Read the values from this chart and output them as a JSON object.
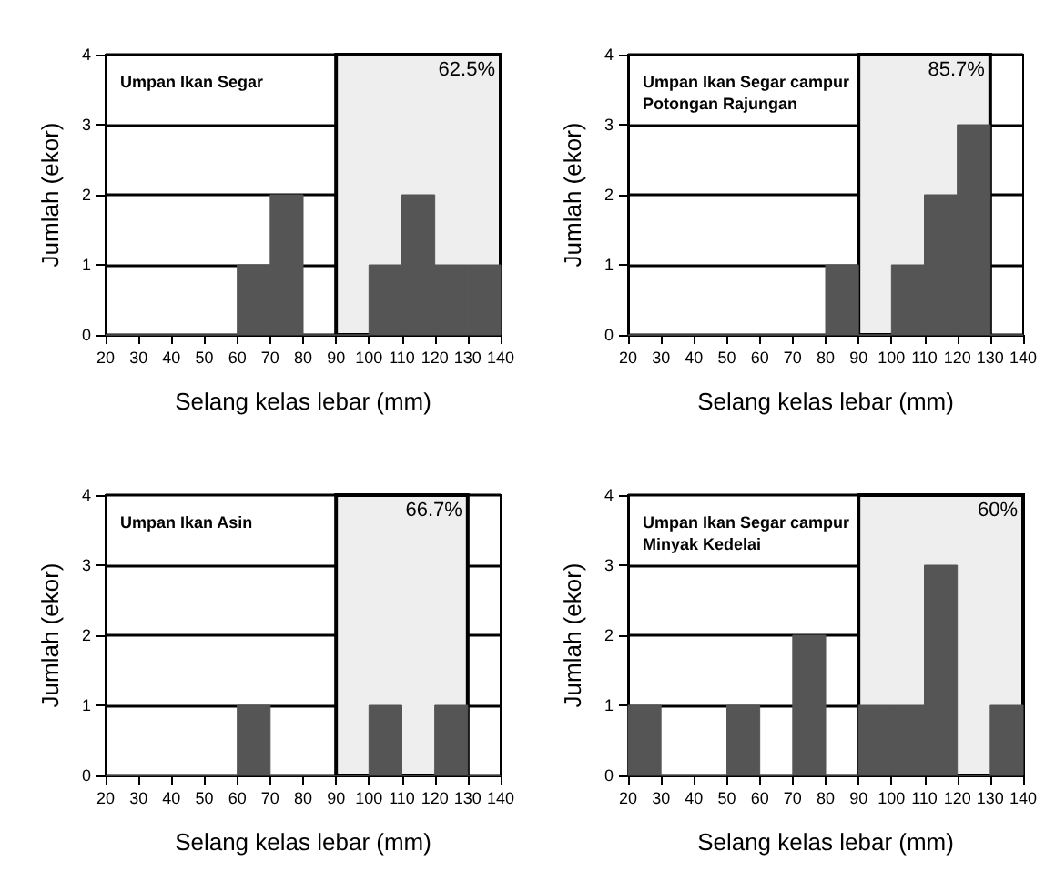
{
  "chart_data": [
    {
      "type": "histogram",
      "title": "Umpan Ikan Segar",
      "xlabel": "Selang kelas lebar (mm)",
      "ylabel": "Jumlah (ekor)",
      "bins": [
        20,
        30,
        40,
        50,
        60,
        70,
        80,
        90,
        100,
        110,
        120,
        130,
        140
      ],
      "values": [
        0,
        0,
        0,
        0,
        1,
        2,
        0,
        0,
        1,
        2,
        1,
        1
      ],
      "color": "#555555",
      "xlim": [
        20,
        140
      ],
      "xticks": [
        20,
        30,
        40,
        50,
        60,
        70,
        80,
        90,
        100,
        110,
        120,
        130,
        140
      ],
      "ylim": [
        0,
        4
      ],
      "yticks": [
        0,
        1,
        2,
        3,
        4
      ],
      "grid": "y",
      "bands": [
        {
          "axis": "x",
          "from": 90,
          "to": 140,
          "label": "62.5%",
          "color": "#eeeeee"
        }
      ]
    },
    {
      "type": "histogram",
      "title": "Umpan Ikan Segar campur\nPotongan Rajungan",
      "xlabel": "Selang kelas lebar (mm)",
      "ylabel": "Jumlah (ekor)",
      "bins": [
        20,
        30,
        40,
        50,
        60,
        70,
        80,
        90,
        100,
        110,
        120,
        130,
        140
      ],
      "values": [
        0,
        0,
        0,
        0,
        0,
        0,
        1,
        0,
        1,
        2,
        3,
        0
      ],
      "color": "#555555",
      "xlim": [
        20,
        140
      ],
      "xticks": [
        20,
        30,
        40,
        50,
        60,
        70,
        80,
        90,
        100,
        110,
        120,
        130,
        140
      ],
      "ylim": [
        0,
        4
      ],
      "yticks": [
        0,
        1,
        2,
        3,
        4
      ],
      "grid": "y",
      "bands": [
        {
          "axis": "x",
          "from": 90,
          "to": 130,
          "label": "85.7%",
          "color": "#eeeeee"
        }
      ]
    },
    {
      "type": "histogram",
      "title": "Umpan Ikan Asin",
      "xlabel": "Selang kelas lebar (mm)",
      "ylabel": "Jumlah (ekor)",
      "bins": [
        20,
        30,
        40,
        50,
        60,
        70,
        80,
        90,
        100,
        110,
        120,
        130,
        140
      ],
      "values": [
        0,
        0,
        0,
        0,
        1,
        0,
        0,
        0,
        1,
        0,
        1,
        0
      ],
      "color": "#555555",
      "xlim": [
        20,
        140
      ],
      "xticks": [
        20,
        30,
        40,
        50,
        60,
        70,
        80,
        90,
        100,
        110,
        120,
        130,
        140
      ],
      "ylim": [
        0,
        4
      ],
      "yticks": [
        0,
        1,
        2,
        3,
        4
      ],
      "grid": "y",
      "bands": [
        {
          "axis": "x",
          "from": 90,
          "to": 130,
          "label": "66.7%",
          "color": "#eeeeee"
        }
      ]
    },
    {
      "type": "histogram",
      "title": "Umpan Ikan Segar campur\nMinyak Kedelai",
      "xlabel": "Selang kelas lebar (mm)",
      "ylabel": "Jumlah (ekor)",
      "bins": [
        20,
        30,
        40,
        50,
        60,
        70,
        80,
        90,
        100,
        110,
        120,
        130,
        140
      ],
      "values": [
        1,
        0,
        0,
        1,
        0,
        2,
        0,
        1,
        1,
        3,
        0,
        1
      ],
      "color": "#555555",
      "xlim": [
        20,
        140
      ],
      "xticks": [
        20,
        30,
        40,
        50,
        60,
        70,
        80,
        90,
        100,
        110,
        120,
        130,
        140
      ],
      "ylim": [
        0,
        4
      ],
      "yticks": [
        0,
        1,
        2,
        3,
        4
      ],
      "grid": "y",
      "bands": [
        {
          "axis": "x",
          "from": 90,
          "to": 140,
          "label": "60%",
          "color": "#eeeeee"
        }
      ]
    }
  ]
}
